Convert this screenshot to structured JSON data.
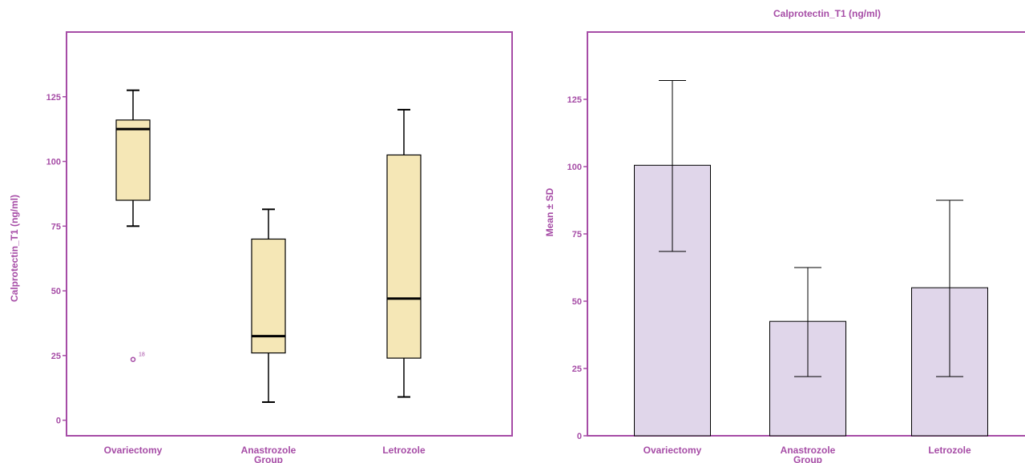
{
  "colors": {
    "axis": "#a64ca6",
    "box_fill": "#f5e7b6",
    "bar_fill": "#e0d6ea",
    "stroke": "#000000"
  },
  "chart_data": [
    {
      "type": "boxplot",
      "title": "",
      "xlabel": "",
      "ylabel": "Calprotectin_T1 (ng/ml)",
      "categories": [
        "Ovariectomy",
        "Anastrozole",
        "Letrozole"
      ],
      "group_label": "Group",
      "yticks": [
        0,
        25,
        50,
        75,
        100,
        125
      ],
      "ylim": [
        -6,
        150
      ],
      "grid": false,
      "boxes": [
        {
          "category": "Ovariectomy",
          "whisker_low": 75,
          "q1": 85,
          "median": 112.5,
          "q3": 116,
          "whisker_high": 127.5,
          "outliers": [
            {
              "value": 23.5,
              "label": "18"
            }
          ]
        },
        {
          "category": "Anastrozole",
          "whisker_low": 7,
          "q1": 26,
          "median": 32.5,
          "q3": 70,
          "whisker_high": 81.5,
          "outliers": []
        },
        {
          "category": "Letrozole",
          "whisker_low": 9,
          "q1": 24,
          "median": 47,
          "q3": 102.5,
          "whisker_high": 120,
          "outliers": []
        }
      ]
    },
    {
      "type": "bar",
      "title": "Calprotectin_T1 (ng/ml)",
      "xlabel": "",
      "ylabel": "Mean ± SD",
      "categories": [
        "Ovariectomy",
        "Anastrozole",
        "Letrozole"
      ],
      "group_label": "Group",
      "yticks": [
        0,
        25,
        50,
        75,
        100,
        125
      ],
      "ylim": [
        0,
        150
      ],
      "grid": false,
      "values": [
        100.5,
        42.5,
        55
      ],
      "error_low": [
        68.5,
        22,
        22
      ],
      "error_high": [
        132,
        62.5,
        87.5
      ]
    }
  ]
}
